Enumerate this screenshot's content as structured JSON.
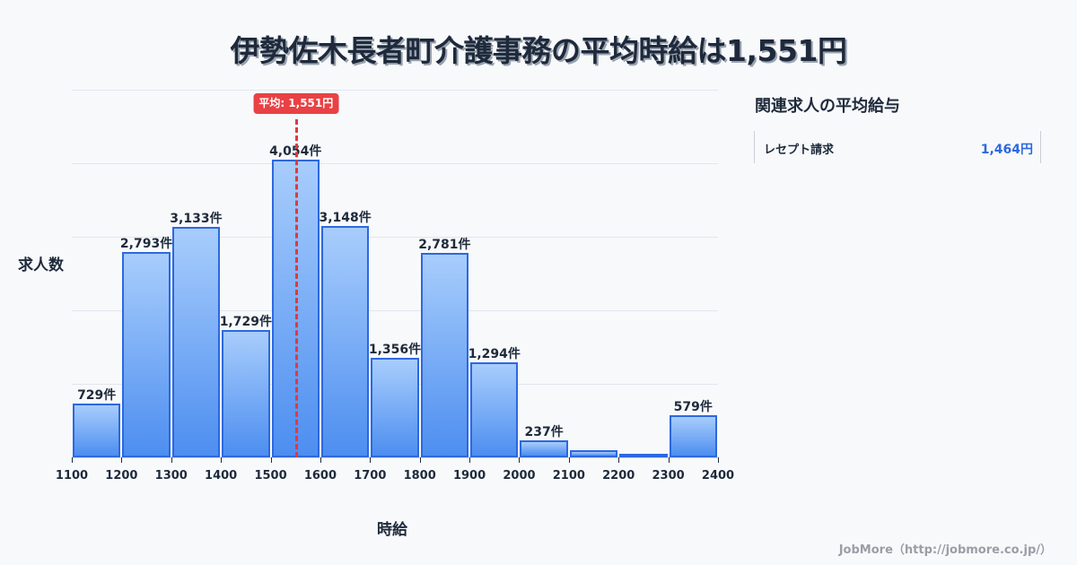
{
  "title": "伊勢佐木長者町介護事務の平均時給は1,551円",
  "chart_data": {
    "type": "bar",
    "title": "伊勢佐木長者町介護事務の平均時給は1,551円",
    "xlabel": "時給",
    "ylabel": "求人数",
    "bin_edges": [
      1100,
      1200,
      1300,
      1400,
      1500,
      1600,
      1700,
      1800,
      1900,
      2000,
      2100,
      2200,
      2300,
      2400
    ],
    "categories": [
      "1100-1200",
      "1200-1300",
      "1300-1400",
      "1400-1500",
      "1500-1600",
      "1600-1700",
      "1700-1800",
      "1800-1900",
      "1900-2000",
      "2000-2100",
      "2100-2200",
      "2200-2300",
      "2300-2400"
    ],
    "values": [
      729,
      2793,
      3133,
      1729,
      4054,
      3148,
      1356,
      2781,
      1294,
      237,
      100,
      30,
      579
    ],
    "labels": [
      "729件",
      "2,793件",
      "3,133件",
      "1,729件",
      "4,054件",
      "3,148件",
      "1,356件",
      "2,781件",
      "1,294件",
      "237件",
      "",
      "",
      "579件"
    ],
    "x_tick_labels": [
      "1100",
      "1200",
      "1300",
      "1400",
      "1500",
      "1600",
      "1700",
      "1800",
      "1900",
      "2000",
      "2100",
      "2200",
      "2300",
      "2400"
    ],
    "xlim": [
      1100,
      2400
    ],
    "ylim": [
      0,
      5000
    ],
    "grid": true,
    "mean_line": {
      "value": 1551,
      "label": "平均: 1,551円",
      "color": "#e94144"
    },
    "bar_color": "#4d8ef0",
    "bar_border_color": "#2c68e0"
  },
  "axis": {
    "ylabel": "求人数",
    "xlabel": "時給"
  },
  "related": {
    "title": "関連求人の平均給与",
    "items": [
      {
        "label": "レセプト請求",
        "value": "1,464円"
      }
    ]
  },
  "footer": "JobMore（http://jobmore.co.jp/）"
}
